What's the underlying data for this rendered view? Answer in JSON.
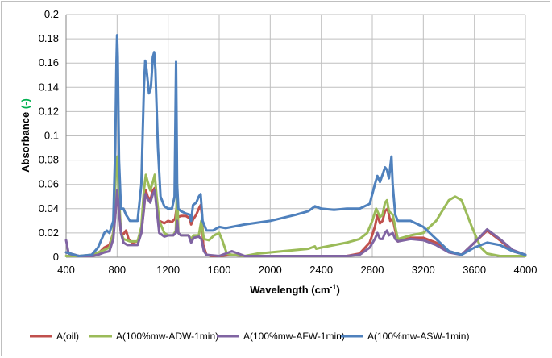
{
  "chart_data": {
    "type": "line",
    "title": "",
    "xlabel_main": "Wavelength (cm",
    "xlabel_sup": "-1",
    "xlabel_close": ")",
    "ylabel_main": "Absorbance ",
    "ylabel_unit": "(-)",
    "ylabel_unit_color": "#00b050",
    "xlim": [
      400,
      4000
    ],
    "ylim": [
      0,
      0.2
    ],
    "x_ticks": [
      "400",
      "800",
      "1200",
      "1600",
      "2000",
      "2400",
      "2800",
      "3200",
      "3600",
      "4000"
    ],
    "y_ticks": [
      "0",
      "0.02",
      "0.04",
      "0.06",
      "0.08",
      "0.1",
      "0.12",
      "0.14",
      "0.16",
      "0.18",
      "0.2"
    ],
    "grid": true,
    "legend_position": "bottom",
    "series": [
      {
        "name": "A(oil)",
        "color": "#c0504d",
        "points": [
          [
            400,
            0.004
          ],
          [
            500,
            0.001
          ],
          [
            600,
            0.001
          ],
          [
            650,
            0.003
          ],
          [
            700,
            0.008
          ],
          [
            740,
            0.01
          ],
          [
            770,
            0.02
          ],
          [
            790,
            0.04
          ],
          [
            800,
            0.05
          ],
          [
            810,
            0.045
          ],
          [
            830,
            0.02
          ],
          [
            850,
            0.019
          ],
          [
            870,
            0.022
          ],
          [
            890,
            0.015
          ],
          [
            920,
            0.012
          ],
          [
            960,
            0.013
          ],
          [
            990,
            0.02
          ],
          [
            1010,
            0.04
          ],
          [
            1025,
            0.055
          ],
          [
            1040,
            0.05
          ],
          [
            1060,
            0.047
          ],
          [
            1080,
            0.055
          ],
          [
            1095,
            0.057
          ],
          [
            1110,
            0.045
          ],
          [
            1130,
            0.03
          ],
          [
            1170,
            0.028
          ],
          [
            1200,
            0.03
          ],
          [
            1230,
            0.029
          ],
          [
            1255,
            0.032
          ],
          [
            1265,
            0.04
          ],
          [
            1275,
            0.033
          ],
          [
            1300,
            0.034
          ],
          [
            1340,
            0.034
          ],
          [
            1370,
            0.032
          ],
          [
            1380,
            0.027
          ],
          [
            1395,
            0.031
          ],
          [
            1420,
            0.035
          ],
          [
            1440,
            0.04
          ],
          [
            1455,
            0.043
          ],
          [
            1465,
            0.035
          ],
          [
            1475,
            0.01
          ],
          [
            1500,
            0.002
          ],
          [
            1550,
            0.001
          ],
          [
            1600,
            0.001
          ],
          [
            1700,
            0.002
          ],
          [
            1800,
            0.001
          ],
          [
            2000,
            0.001
          ],
          [
            2200,
            0.001
          ],
          [
            2400,
            0.001
          ],
          [
            2600,
            0.001
          ],
          [
            2700,
            0.003
          ],
          [
            2780,
            0.012
          ],
          [
            2820,
            0.025
          ],
          [
            2840,
            0.035
          ],
          [
            2860,
            0.028
          ],
          [
            2880,
            0.03
          ],
          [
            2900,
            0.038
          ],
          [
            2920,
            0.04
          ],
          [
            2940,
            0.03
          ],
          [
            2960,
            0.032
          ],
          [
            2980,
            0.022
          ],
          [
            3000,
            0.013
          ],
          [
            3100,
            0.016
          ],
          [
            3200,
            0.016
          ],
          [
            3300,
            0.012
          ],
          [
            3400,
            0.005
          ],
          [
            3500,
            0.002
          ],
          [
            3600,
            0.012
          ],
          [
            3700,
            0.022
          ],
          [
            3800,
            0.014
          ],
          [
            3900,
            0.005
          ],
          [
            4000,
            0.002
          ]
        ]
      },
      {
        "name": "A(100%mw-ADW-1min)",
        "color": "#9bbb59",
        "points": [
          [
            400,
            0.001
          ],
          [
            500,
            0.001
          ],
          [
            600,
            0.002
          ],
          [
            650,
            0.004
          ],
          [
            700,
            0.006
          ],
          [
            740,
            0.008
          ],
          [
            770,
            0.02
          ],
          [
            785,
            0.06
          ],
          [
            795,
            0.08
          ],
          [
            800,
            0.083
          ],
          [
            810,
            0.06
          ],
          [
            830,
            0.02
          ],
          [
            850,
            0.015
          ],
          [
            900,
            0.013
          ],
          [
            960,
            0.013
          ],
          [
            990,
            0.025
          ],
          [
            1010,
            0.055
          ],
          [
            1025,
            0.068
          ],
          [
            1040,
            0.062
          ],
          [
            1060,
            0.055
          ],
          [
            1080,
            0.062
          ],
          [
            1095,
            0.068
          ],
          [
            1110,
            0.05
          ],
          [
            1130,
            0.03
          ],
          [
            1170,
            0.02
          ],
          [
            1200,
            0.018
          ],
          [
            1240,
            0.018
          ],
          [
            1260,
            0.022
          ],
          [
            1270,
            0.06
          ],
          [
            1280,
            0.02
          ],
          [
            1300,
            0.018
          ],
          [
            1360,
            0.018
          ],
          [
            1380,
            0.015
          ],
          [
            1400,
            0.018
          ],
          [
            1440,
            0.018
          ],
          [
            1460,
            0.03
          ],
          [
            1480,
            0.015
          ],
          [
            1520,
            0.014
          ],
          [
            1560,
            0.018
          ],
          [
            1600,
            0.02
          ],
          [
            1620,
            0.015
          ],
          [
            1660,
            0.003
          ],
          [
            1700,
            0.002
          ],
          [
            1800,
            0.001
          ],
          [
            1900,
            0.003
          ],
          [
            2100,
            0.005
          ],
          [
            2300,
            0.007
          ],
          [
            2350,
            0.009
          ],
          [
            2360,
            0.007
          ],
          [
            2400,
            0.008
          ],
          [
            2600,
            0.012
          ],
          [
            2700,
            0.015
          ],
          [
            2760,
            0.02
          ],
          [
            2800,
            0.03
          ],
          [
            2830,
            0.04
          ],
          [
            2860,
            0.033
          ],
          [
            2880,
            0.035
          ],
          [
            2900,
            0.045
          ],
          [
            2915,
            0.047
          ],
          [
            2930,
            0.038
          ],
          [
            2960,
            0.035
          ],
          [
            3000,
            0.015
          ],
          [
            3100,
            0.018
          ],
          [
            3200,
            0.02
          ],
          [
            3300,
            0.03
          ],
          [
            3400,
            0.047
          ],
          [
            3450,
            0.05
          ],
          [
            3500,
            0.047
          ],
          [
            3580,
            0.025
          ],
          [
            3650,
            0.008
          ],
          [
            3700,
            0.003
          ],
          [
            3800,
            0.001
          ],
          [
            4000,
            0.001
          ]
        ]
      },
      {
        "name": "A(100%mw-AFW-1min)",
        "color": "#8064a2",
        "points": [
          [
            400,
            0.014
          ],
          [
            420,
            0.003
          ],
          [
            500,
            0.001
          ],
          [
            600,
            0.001
          ],
          [
            650,
            0.002
          ],
          [
            700,
            0.004
          ],
          [
            740,
            0.005
          ],
          [
            770,
            0.015
          ],
          [
            790,
            0.04
          ],
          [
            800,
            0.055
          ],
          [
            810,
            0.045
          ],
          [
            830,
            0.02
          ],
          [
            850,
            0.012
          ],
          [
            880,
            0.01
          ],
          [
            960,
            0.01
          ],
          [
            990,
            0.02
          ],
          [
            1010,
            0.04
          ],
          [
            1020,
            0.052
          ],
          [
            1040,
            0.048
          ],
          [
            1060,
            0.045
          ],
          [
            1080,
            0.052
          ],
          [
            1095,
            0.055
          ],
          [
            1110,
            0.04
          ],
          [
            1130,
            0.02
          ],
          [
            1170,
            0.017
          ],
          [
            1200,
            0.018
          ],
          [
            1240,
            0.018
          ],
          [
            1260,
            0.02
          ],
          [
            1270,
            0.03
          ],
          [
            1280,
            0.02
          ],
          [
            1300,
            0.018
          ],
          [
            1360,
            0.018
          ],
          [
            1380,
            0.012
          ],
          [
            1400,
            0.016
          ],
          [
            1440,
            0.017
          ],
          [
            1460,
            0.015
          ],
          [
            1480,
            0.005
          ],
          [
            1500,
            0.002
          ],
          [
            1600,
            0.001
          ],
          [
            1700,
            0.005
          ],
          [
            1800,
            0.001
          ],
          [
            2000,
            0.001
          ],
          [
            2400,
            0.001
          ],
          [
            2600,
            0.001
          ],
          [
            2700,
            0.002
          ],
          [
            2780,
            0.008
          ],
          [
            2820,
            0.015
          ],
          [
            2840,
            0.02
          ],
          [
            2860,
            0.015
          ],
          [
            2880,
            0.015
          ],
          [
            2900,
            0.02
          ],
          [
            2915,
            0.022
          ],
          [
            2930,
            0.018
          ],
          [
            2960,
            0.02
          ],
          [
            2980,
            0.015
          ],
          [
            3000,
            0.013
          ],
          [
            3100,
            0.015
          ],
          [
            3200,
            0.014
          ],
          [
            3300,
            0.01
          ],
          [
            3400,
            0.004
          ],
          [
            3500,
            0.002
          ],
          [
            3600,
            0.012
          ],
          [
            3700,
            0.023
          ],
          [
            3800,
            0.015
          ],
          [
            3900,
            0.006
          ],
          [
            4000,
            0.002
          ]
        ]
      },
      {
        "name": "A(100%mw-ASW-1min)",
        "color": "#4f81bd",
        "points": [
          [
            400,
            0.004
          ],
          [
            500,
            0.001
          ],
          [
            600,
            0.002
          ],
          [
            650,
            0.008
          ],
          [
            700,
            0.02
          ],
          [
            720,
            0.022
          ],
          [
            740,
            0.02
          ],
          [
            770,
            0.03
          ],
          [
            785,
            0.09
          ],
          [
            795,
            0.16
          ],
          [
            800,
            0.183
          ],
          [
            805,
            0.165
          ],
          [
            815,
            0.08
          ],
          [
            830,
            0.04
          ],
          [
            850,
            0.04
          ],
          [
            870,
            0.035
          ],
          [
            900,
            0.03
          ],
          [
            960,
            0.03
          ],
          [
            990,
            0.06
          ],
          [
            1010,
            0.14
          ],
          [
            1020,
            0.162
          ],
          [
            1030,
            0.155
          ],
          [
            1050,
            0.135
          ],
          [
            1065,
            0.14
          ],
          [
            1080,
            0.165
          ],
          [
            1090,
            0.169
          ],
          [
            1100,
            0.155
          ],
          [
            1120,
            0.09
          ],
          [
            1140,
            0.05
          ],
          [
            1170,
            0.042
          ],
          [
            1200,
            0.04
          ],
          [
            1230,
            0.04
          ],
          [
            1250,
            0.05
          ],
          [
            1262,
            0.161
          ],
          [
            1270,
            0.06
          ],
          [
            1280,
            0.04
          ],
          [
            1300,
            0.038
          ],
          [
            1340,
            0.036
          ],
          [
            1370,
            0.035
          ],
          [
            1380,
            0.03
          ],
          [
            1395,
            0.043
          ],
          [
            1420,
            0.045
          ],
          [
            1440,
            0.05
          ],
          [
            1455,
            0.052
          ],
          [
            1470,
            0.03
          ],
          [
            1500,
            0.022
          ],
          [
            1550,
            0.022
          ],
          [
            1600,
            0.025
          ],
          [
            1650,
            0.024
          ],
          [
            1700,
            0.025
          ],
          [
            1800,
            0.027
          ],
          [
            2000,
            0.03
          ],
          [
            2200,
            0.035
          ],
          [
            2300,
            0.038
          ],
          [
            2350,
            0.042
          ],
          [
            2400,
            0.04
          ],
          [
            2500,
            0.039
          ],
          [
            2600,
            0.04
          ],
          [
            2700,
            0.04
          ],
          [
            2780,
            0.044
          ],
          [
            2820,
            0.06
          ],
          [
            2840,
            0.067
          ],
          [
            2860,
            0.062
          ],
          [
            2880,
            0.068
          ],
          [
            2900,
            0.074
          ],
          [
            2915,
            0.072
          ],
          [
            2930,
            0.065
          ],
          [
            2950,
            0.083
          ],
          [
            2960,
            0.06
          ],
          [
            2980,
            0.035
          ],
          [
            3000,
            0.03
          ],
          [
            3100,
            0.03
          ],
          [
            3200,
            0.025
          ],
          [
            3300,
            0.015
          ],
          [
            3400,
            0.005
          ],
          [
            3500,
            0.002
          ],
          [
            3600,
            0.008
          ],
          [
            3700,
            0.012
          ],
          [
            3800,
            0.01
          ],
          [
            3900,
            0.005
          ],
          [
            4000,
            0.002
          ]
        ]
      }
    ]
  }
}
